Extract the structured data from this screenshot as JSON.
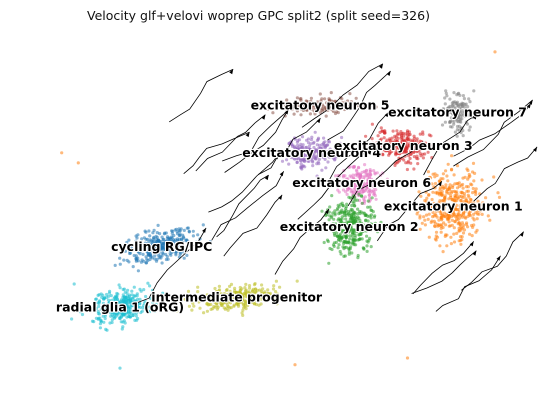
{
  "chart_data": {
    "type": "scatter",
    "title": "Velocity glf+velovi woprep GPC split2 (split seed=326)",
    "xlabel": "",
    "ylabel": "",
    "axes_visible": false,
    "grid": false,
    "legend": "on-data",
    "overlay": "velocity-streamlines",
    "clusters": [
      {
        "label": "excitatory neuron 5",
        "color": "#8c564b",
        "center": [
          1.6,
          8.6
        ]
      },
      {
        "label": "excitatory neuron 7",
        "color": "#7f7f7f",
        "center": [
          4.9,
          8.4
        ]
      },
      {
        "label": "excitatory neuron 4",
        "color": "#9467bd",
        "center": [
          1.4,
          7.2
        ]
      },
      {
        "label": "excitatory neuron 3",
        "color": "#d62728",
        "center": [
          3.6,
          7.4
        ]
      },
      {
        "label": "excitatory neuron 6",
        "color": "#e377c2",
        "center": [
          2.6,
          6.3
        ]
      },
      {
        "label": "excitatory neuron 1",
        "color": "#ff7f0e",
        "center": [
          4.8,
          5.6
        ]
      },
      {
        "label": "excitatory neuron 2",
        "color": "#2ca02c",
        "center": [
          2.3,
          5.0
        ]
      },
      {
        "label": "cycling RG/IPC",
        "color": "#1f77b4",
        "center": [
          -2.2,
          4.4
        ]
      },
      {
        "label": "intermediate progenitor",
        "color": "#bcbd22",
        "center": [
          -0.4,
          2.9
        ]
      },
      {
        "label": "radial glia 1 (oRG)",
        "color": "#17becf",
        "center": [
          -3.2,
          2.6
        ]
      }
    ]
  }
}
